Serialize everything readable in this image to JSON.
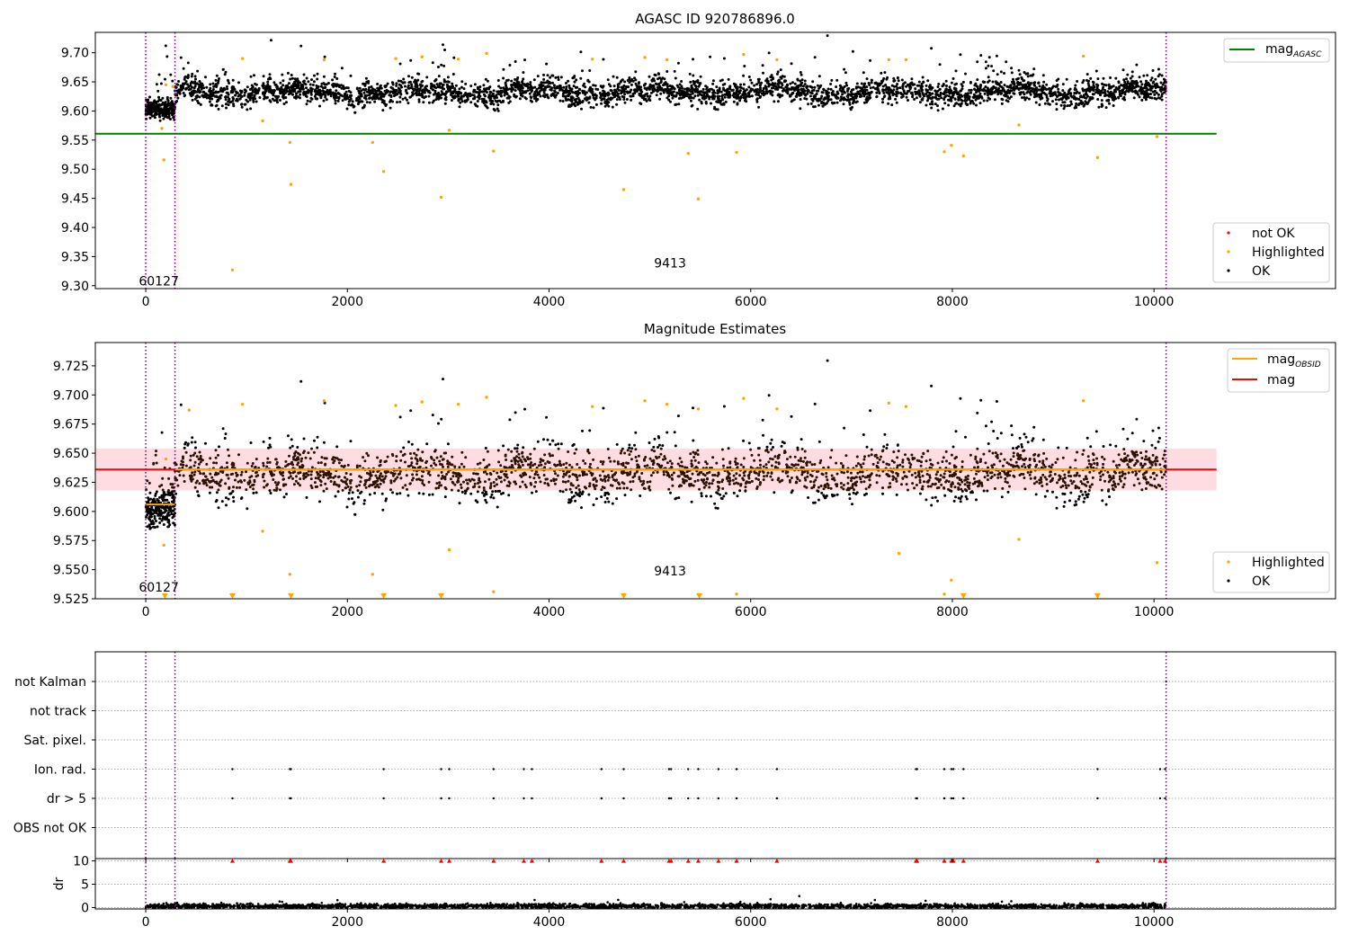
{
  "chart_data": [
    {
      "type": "scatter",
      "title": "AGASC ID 920786896.0",
      "xlim": [
        -500,
        11800
      ],
      "ylim": [
        9.295,
        9.735
      ],
      "xticks": [
        0,
        2000,
        4000,
        6000,
        8000,
        10000
      ],
      "yticks": [
        9.3,
        9.35,
        9.4,
        9.45,
        9.5,
        9.55,
        9.6,
        9.65,
        9.7
      ],
      "grid": false,
      "vlines_obsid": [
        0,
        290,
        10120
      ],
      "obsid_labels": [
        {
          "text": "60127",
          "x": 130,
          "y": 9.308
        },
        {
          "text": "9413",
          "x": 5200,
          "y": 9.339
        }
      ],
      "mag_agasc": 9.561,
      "mag_agasc_range": [
        -500,
        10620
      ],
      "ok_bands": [
        {
          "x0": 0,
          "x1": 290,
          "center": 9.603,
          "spread": 0.013
        },
        {
          "x0": 290,
          "x1": 10120,
          "center": 9.632,
          "spread": 0.016
        }
      ],
      "highlighted": [
        [
          160,
          9.57
        ],
        [
          180,
          9.516
        ],
        [
          200,
          9.645
        ],
        [
          270,
          9.642
        ],
        [
          860,
          9.327
        ],
        [
          960,
          9.69
        ],
        [
          1160,
          9.583
        ],
        [
          1430,
          9.546
        ],
        [
          1440,
          9.474
        ],
        [
          1770,
          9.688
        ],
        [
          2250,
          9.546
        ],
        [
          2360,
          9.496
        ],
        [
          2480,
          9.69
        ],
        [
          2740,
          9.693
        ],
        [
          2930,
          9.452
        ],
        [
          3010,
          9.567
        ],
        [
          3100,
          9.689
        ],
        [
          3380,
          9.699
        ],
        [
          3450,
          9.531
        ],
        [
          4430,
          9.689
        ],
        [
          4740,
          9.465
        ],
        [
          4950,
          9.692
        ],
        [
          5170,
          9.688
        ],
        [
          5380,
          9.527
        ],
        [
          5480,
          9.449
        ],
        [
          5860,
          9.529
        ],
        [
          5930,
          9.697
        ],
        [
          6260,
          9.688
        ],
        [
          7370,
          9.688
        ],
        [
          7540,
          9.688
        ],
        [
          7920,
          9.53
        ],
        [
          7990,
          9.541
        ],
        [
          8110,
          9.523
        ],
        [
          8660,
          9.576
        ],
        [
          9300,
          9.694
        ],
        [
          9440,
          9.52
        ],
        [
          10030,
          9.556
        ]
      ],
      "legend_lines": [
        {
          "label": "mag",
          "sub": "AGASC",
          "color": "#008000"
        }
      ],
      "legend_points": [
        {
          "label": "not OK",
          "color": "#ff0000"
        },
        {
          "label": "Highlighted",
          "color": "#ffa500"
        },
        {
          "label": "OK",
          "color": "#000000"
        }
      ]
    },
    {
      "type": "scatter",
      "title": "Magnitude Estimates",
      "xlim": [
        -500,
        11800
      ],
      "ylim": [
        9.525,
        9.745
      ],
      "xticks": [
        0,
        2000,
        4000,
        6000,
        8000,
        10000
      ],
      "yticks": [
        9.525,
        9.55,
        9.575,
        9.6,
        9.625,
        9.65,
        9.675,
        9.7,
        9.725
      ],
      "grid": false,
      "vlines_obsid": [
        0,
        290,
        10120
      ],
      "obsid_labels": [
        {
          "text": "60127",
          "x": 130,
          "y": 9.535
        },
        {
          "text": "9413",
          "x": 5200,
          "y": 9.549
        }
      ],
      "mag": 9.636,
      "mag_band": [
        9.618,
        9.654
      ],
      "mag_range": [
        -500,
        10620
      ],
      "mag_obsid_segments": [
        {
          "x0": 0,
          "x1": 290,
          "y": 9.606
        },
        {
          "x0": 290,
          "x1": 10120,
          "y": 9.636
        }
      ],
      "ok_bands": [
        {
          "x0": 0,
          "x1": 290,
          "center": 9.603,
          "spread": 0.013
        },
        {
          "x0": 290,
          "x1": 10120,
          "center": 9.632,
          "spread": 0.016
        }
      ],
      "highlighted": [
        [
          180,
          9.571
        ],
        [
          200,
          9.645
        ],
        [
          430,
          9.687
        ],
        [
          960,
          9.692
        ],
        [
          1160,
          9.583
        ],
        [
          1430,
          9.546
        ],
        [
          1770,
          9.695
        ],
        [
          2250,
          9.546
        ],
        [
          2480,
          9.691
        ],
        [
          2740,
          9.694
        ],
        [
          3010,
          9.567
        ],
        [
          3100,
          9.692
        ],
        [
          3380,
          9.698
        ],
        [
          3450,
          9.531
        ],
        [
          4430,
          9.69
        ],
        [
          4950,
          9.695
        ],
        [
          5170,
          9.692
        ],
        [
          5480,
          9.688
        ],
        [
          5860,
          9.529
        ],
        [
          5930,
          9.697
        ],
        [
          6260,
          9.688
        ],
        [
          7370,
          9.693
        ],
        [
          7540,
          9.69
        ],
        [
          7470,
          9.564
        ],
        [
          7920,
          9.529
        ],
        [
          7990,
          9.541
        ],
        [
          8660,
          9.576
        ],
        [
          9300,
          9.695
        ],
        [
          10030,
          9.556
        ]
      ],
      "below_range_x": [
        190,
        860,
        1440,
        2360,
        2930,
        4740,
        5490,
        8110,
        9440
      ],
      "legend_lines": [
        {
          "label": "mag",
          "sub": "OBSID",
          "color": "#ffa500"
        },
        {
          "label": "mag",
          "sub": "",
          "color": "#ff0000"
        }
      ],
      "legend_points": [
        {
          "label": "Highlighted",
          "color": "#ffa500"
        },
        {
          "label": "OK",
          "color": "#000000"
        }
      ]
    },
    {
      "type": "scatter",
      "title": "",
      "xlim": [
        -500,
        11800
      ],
      "xticks": [
        0,
        2000,
        4000,
        6000,
        8000,
        10000
      ],
      "flag_rows": [
        "not Kalman",
        "not track",
        "Sat. pixel.",
        "Ion. rad.",
        "dr > 5",
        "OBS not OK"
      ],
      "flag_x": [
        860,
        1430,
        1440,
        2360,
        2930,
        3010,
        3450,
        3750,
        3830,
        4520,
        4740,
        5190,
        5210,
        5380,
        5480,
        5680,
        5860,
        6260,
        7640,
        7650,
        7920,
        7990,
        8010,
        8110,
        9440,
        10060,
        10110
      ],
      "vlines_obsid": [
        0,
        290,
        10120
      ]
    },
    {
      "type": "scatter",
      "title": "",
      "ylabel": "dr",
      "ylim": [
        -0.3,
        10.5
      ],
      "yticks": [
        0,
        5,
        10
      ],
      "xlim": [
        -500,
        11800
      ],
      "xticks": [
        0,
        2000,
        4000,
        6000,
        8000,
        10000
      ],
      "xticklabels": [
        "0",
        "2000",
        "4000",
        "6000",
        "8000",
        "10000"
      ],
      "dr_clip_x": [
        860,
        1430,
        1440,
        2360,
        2930,
        3010,
        3450,
        3750,
        3830,
        4520,
        4740,
        5190,
        5210,
        5380,
        5480,
        5680,
        5860,
        6260,
        7640,
        7650,
        7920,
        7990,
        8010,
        8110,
        9440,
        10060,
        10110
      ],
      "dr_typical": 0.3,
      "vlines_obsid": [
        0,
        290,
        10120
      ]
    }
  ],
  "colors": {
    "ok": "#000000",
    "highlighted": "#ffa500",
    "not_ok": "#ff0000",
    "mag_agasc": "#008000",
    "mag": "#ff0000",
    "mag_obsid": "#ffa500",
    "band": "#ffc0cb",
    "vline": "#800080",
    "grid": "#b0b0b0"
  }
}
